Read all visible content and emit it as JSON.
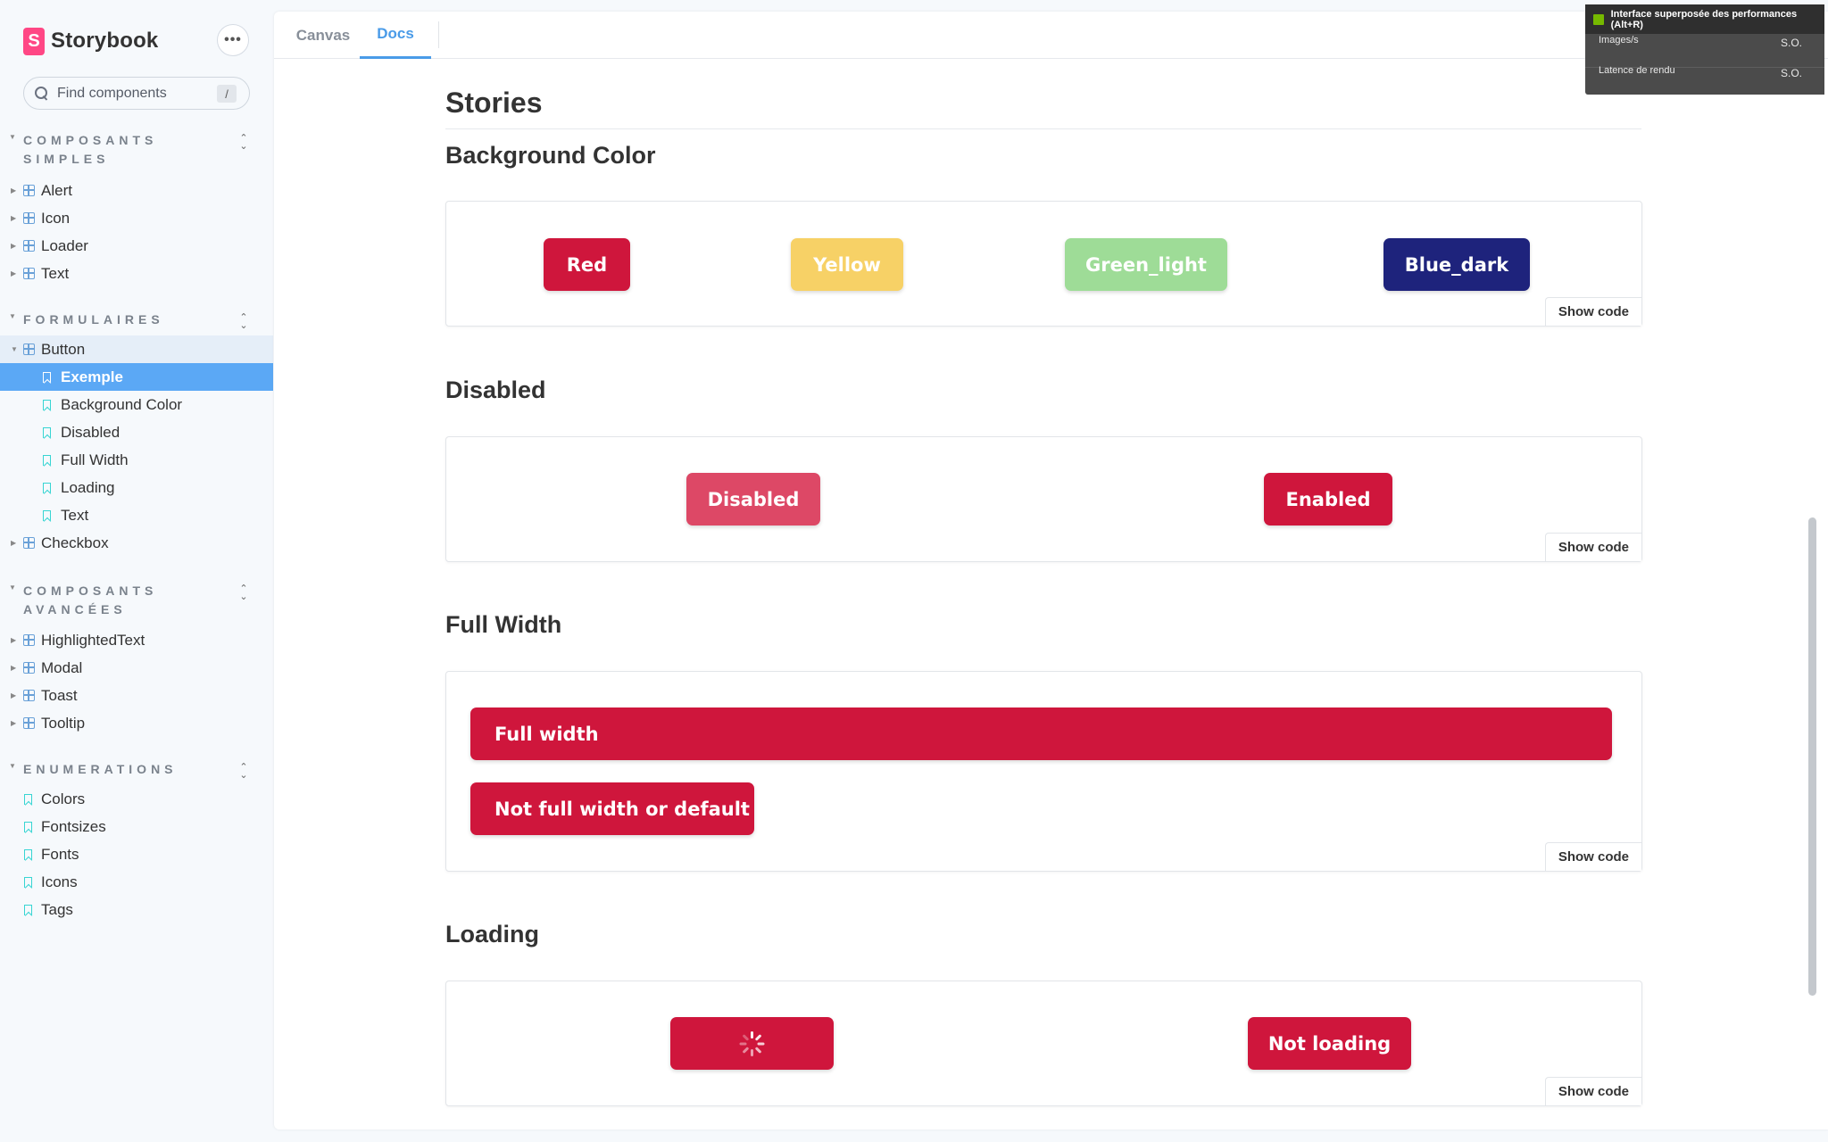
{
  "sidebar": {
    "brand": "Storybook",
    "brand_logo": "S",
    "menu_label": "•••",
    "search": {
      "placeholder": "Find components",
      "shortcut": "/"
    },
    "groups": [
      {
        "title": "COMPOSANTS SIMPLES",
        "items": [
          "Alert",
          "Icon",
          "Loader",
          "Text"
        ]
      },
      {
        "title": "FORMULAIRES",
        "component": "Button",
        "stories": [
          "Exemple",
          "Background Color",
          "Disabled",
          "Full Width",
          "Loading",
          "Text"
        ],
        "selected_story": "Exemple",
        "after": [
          "Checkbox"
        ]
      },
      {
        "title": "COMPOSANTS AVANCÉES",
        "items": [
          "HighlightedText",
          "Modal",
          "Toast",
          "Tooltip"
        ]
      },
      {
        "title": "ENUMERATIONS",
        "docs": [
          "Colors",
          "Fontsizes",
          "Fonts",
          "Icons",
          "Tags"
        ]
      }
    ]
  },
  "tabs": {
    "canvas": "Canvas",
    "docs": "Docs",
    "active": "Docs"
  },
  "docs": {
    "stories_heading": "Stories",
    "show_code": "Show code",
    "sections": {
      "background_color": {
        "title": "Background Color",
        "buttons": [
          {
            "label": "Red",
            "color": "#cf163c"
          },
          {
            "label": "Yellow",
            "color": "#f7d166"
          },
          {
            "label": "Green_light",
            "color": "#9edc97"
          },
          {
            "label": "Blue_dark",
            "color": "#1e237c"
          }
        ]
      },
      "disabled": {
        "title": "Disabled",
        "buttons": [
          {
            "label": "Disabled"
          },
          {
            "label": "Enabled"
          }
        ]
      },
      "full_width": {
        "title": "Full Width",
        "buttons": [
          {
            "label": "Full width"
          },
          {
            "label": "Not full width or default"
          }
        ]
      },
      "loading": {
        "title": "Loading",
        "buttons": [
          {
            "label": "",
            "icon": "spinner-icon"
          },
          {
            "label": "Not loading"
          }
        ]
      }
    }
  },
  "overlay": {
    "title": "Interface superposée des performances (Alt+R)",
    "rows": [
      {
        "label": "Images/s",
        "value": "S.O."
      },
      {
        "label": "Latence de rendu",
        "value": "S.O."
      }
    ]
  },
  "colors": {
    "accent": "#4a9be8",
    "selected": "#5ba8f5",
    "primary_button": "#cf163c"
  }
}
